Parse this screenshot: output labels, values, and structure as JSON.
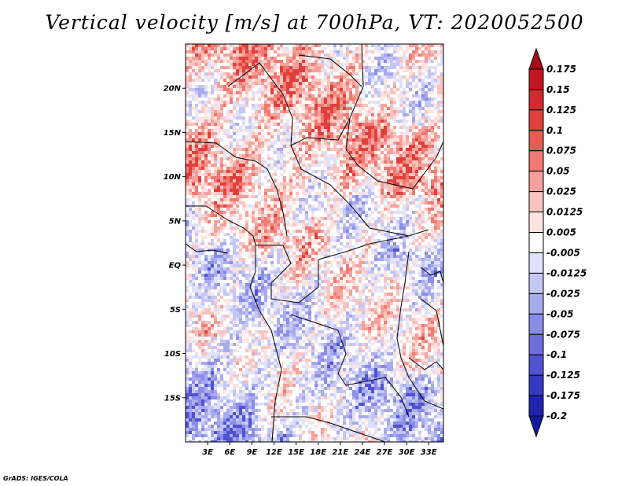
{
  "title": "Vertical velocity [m/s] at 700hPa, VT: 2020052500",
  "credit": "GrADS: IGES/COLA",
  "map": {
    "lon_range": [
      0,
      35
    ],
    "lat_range": [
      -20,
      25
    ],
    "lat_ticks": [
      {
        "value": 20,
        "label": "20N"
      },
      {
        "value": 15,
        "label": "15N"
      },
      {
        "value": 10,
        "label": "10N"
      },
      {
        "value": 5,
        "label": "5N"
      },
      {
        "value": 0,
        "label": "EQ"
      },
      {
        "value": -5,
        "label": "5S"
      },
      {
        "value": -10,
        "label": "10S"
      },
      {
        "value": -15,
        "label": "15S"
      }
    ],
    "lon_ticks": [
      {
        "value": 3,
        "label": "3E"
      },
      {
        "value": 6,
        "label": "6E"
      },
      {
        "value": 9,
        "label": "9E"
      },
      {
        "value": 12,
        "label": "12E"
      },
      {
        "value": 15,
        "label": "15E"
      },
      {
        "value": 18,
        "label": "18E"
      },
      {
        "value": 21,
        "label": "21E"
      },
      {
        "value": 24,
        "label": "24E"
      },
      {
        "value": 27,
        "label": "27E"
      },
      {
        "value": 30,
        "label": "30E"
      },
      {
        "value": 33,
        "label": "33E"
      }
    ]
  },
  "colorbar": {
    "levels": [
      "0.175",
      "0.15",
      "0.125",
      "0.1",
      "0.075",
      "0.05",
      "0.025",
      "0.0125",
      "0.005",
      "-0.005",
      "-0.0125",
      "-0.025",
      "-0.05",
      "-0.075",
      "-0.1",
      "-0.125",
      "-0.175",
      "-0.2"
    ],
    "colors": [
      "#a01018",
      "#c01820",
      "#d22a2e",
      "#e0403c",
      "#ea5a52",
      "#f07a72",
      "#f5a09a",
      "#f9c4bf",
      "#fde4e1",
      "#ffffff",
      "#e0e2fb",
      "#c4c6f5",
      "#a8aaee",
      "#8a8ce6",
      "#6c6edc",
      "#5053d0",
      "#3438c2",
      "#2024b0",
      "#1418a0"
    ]
  }
}
